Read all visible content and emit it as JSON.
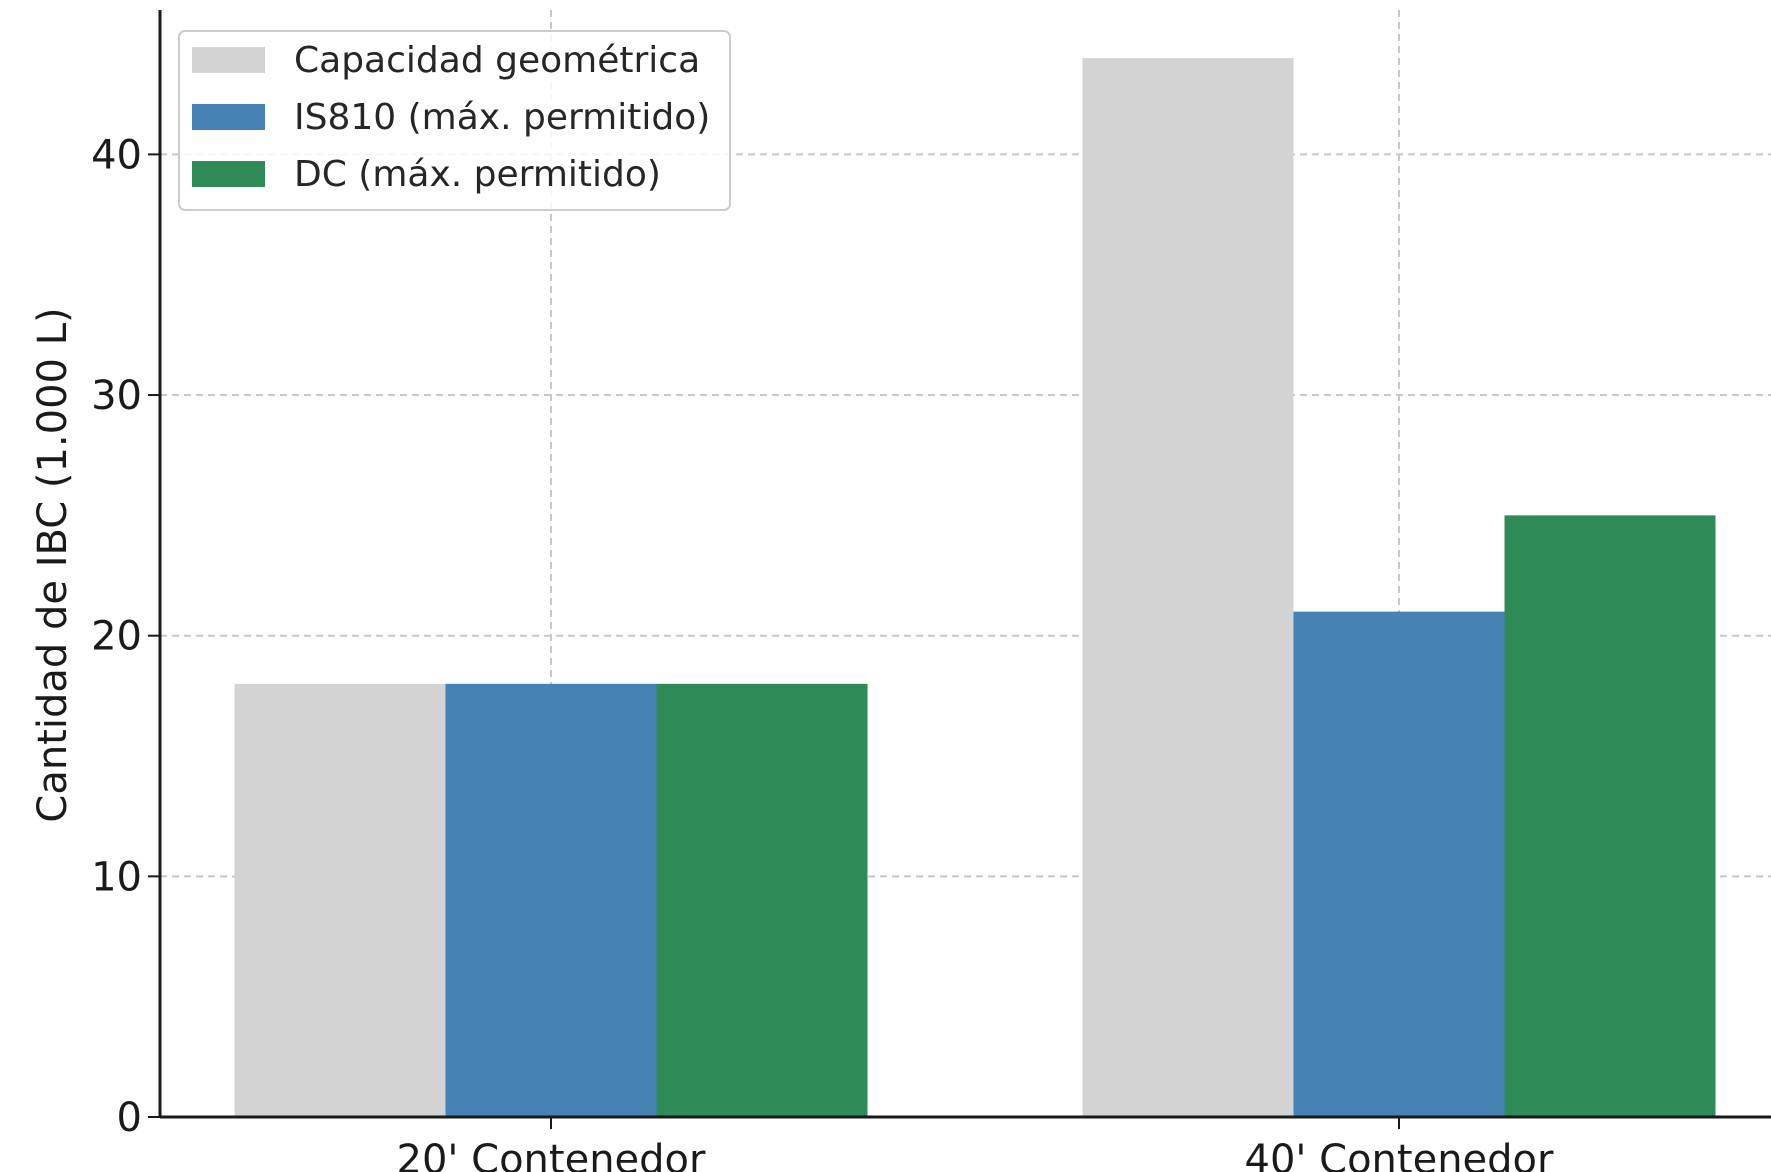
{
  "chart_data": {
    "type": "bar",
    "categories": [
      "20' Contenedor",
      "40' Contenedor"
    ],
    "series": [
      {
        "name": "Capacidad geométrica",
        "values": [
          18,
          44
        ],
        "color": "#d3d3d3"
      },
      {
        "name": "IS810 (máx. permitido)",
        "values": [
          18,
          21
        ],
        "color": "#4682b4"
      },
      {
        "name": "DC (máx. permitido)",
        "values": [
          18,
          25
        ],
        "color": "#2e8b57"
      }
    ],
    "ylabel": "Cantidad de IBC (1.000 L)",
    "ylim": [
      0,
      46
    ],
    "yticks": [
      0,
      10,
      20,
      30,
      40
    ],
    "grid": true,
    "legend_position": "upper-left"
  }
}
